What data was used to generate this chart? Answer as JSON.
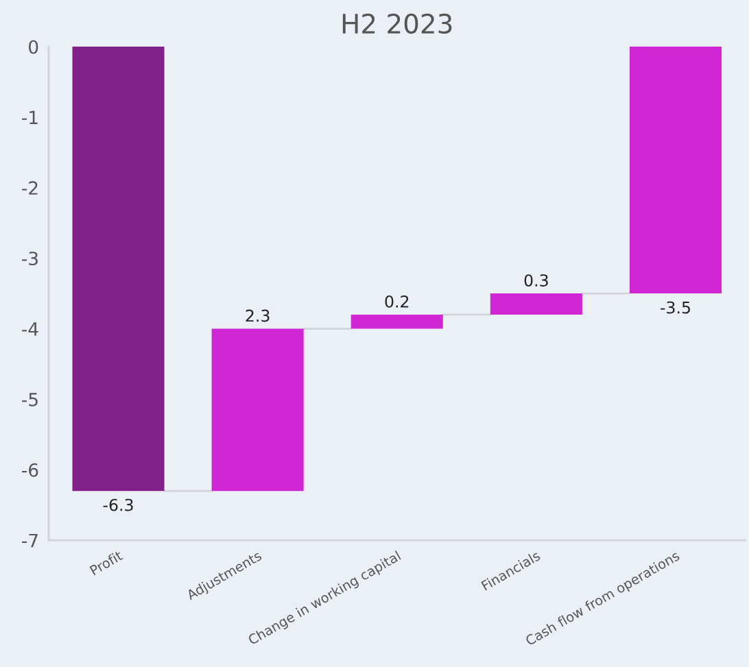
{
  "chart_data": {
    "type": "bar",
    "title": "H2 2023",
    "categories": [
      "Profit",
      "Adjustments",
      "Change in working capital",
      "Financials",
      "Cash flow from operations"
    ],
    "values": [
      -6.3,
      2.3,
      0.2,
      0.3,
      -3.5
    ],
    "base": [
      0,
      -6.3,
      -4.0,
      -3.8,
      0
    ],
    "colors": [
      "#82218a",
      "#d026d4",
      "#d026d4",
      "#d026d4",
      "#d026d4"
    ],
    "ylim": [
      -7,
      0
    ],
    "yticks": [
      0,
      -1,
      -2,
      -3,
      -4,
      -5,
      -6,
      -7
    ],
    "data_labels": true,
    "grid": false,
    "legend": false
  }
}
